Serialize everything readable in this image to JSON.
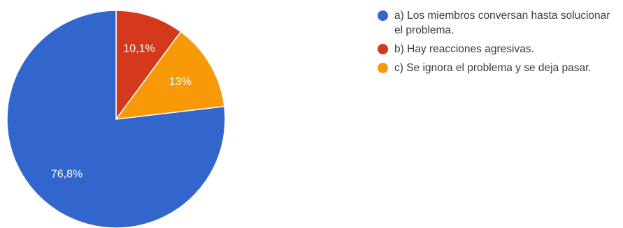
{
  "chart_data": {
    "type": "pie",
    "title": "",
    "start_angle_deg": 0,
    "direction": "clockwise",
    "legend_position": "right",
    "slices": [
      {
        "label": "b) Hay reacciones agresivas.",
        "value": 10.1,
        "display": "10,1%",
        "color": "#d4391c"
      },
      {
        "label": "c) Se ignora el problema y se deja pasar.",
        "value": 13.0,
        "display": "13%",
        "color": "#f89a08"
      },
      {
        "label": "a) Los miembros conversan hasta solucionar el problema.",
        "value": 76.8,
        "display": "76,8%",
        "color": "#3366cc"
      }
    ],
    "legend": [
      {
        "label": "a) Los miembros conversan hasta solucionar el problema.",
        "color": "#3366cc"
      },
      {
        "label": "b) Hay reacciones agresivas.",
        "color": "#d4391c"
      },
      {
        "label": "c) Se ignora el problema y se deja pasar.",
        "color": "#f89a08"
      }
    ]
  }
}
